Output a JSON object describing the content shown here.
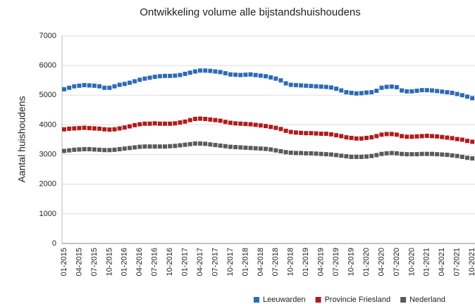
{
  "chart_data": {
    "type": "line",
    "title": "Ontwikkeling volume alle bijstandshuishoudens",
    "y_label": "Aantal huishoudens",
    "categories": [
      "01-2015",
      null,
      null,
      "04-2015",
      null,
      null,
      "07-2015",
      null,
      null,
      "10-2015",
      null,
      null,
      "01-2016",
      null,
      null,
      "04-2016",
      null,
      null,
      "07-2016",
      null,
      null,
      "10-2016",
      null,
      null,
      "01-2017",
      null,
      null,
      "04-2017",
      null,
      null,
      "07-2017",
      null,
      null,
      "10-2017",
      null,
      null,
      "01-2018",
      null,
      null,
      "04-2018",
      null,
      null,
      "07-2018",
      null,
      null,
      "10-2018",
      null,
      null,
      "01-2019",
      null,
      null,
      "04-2019",
      null,
      null,
      "07-2019",
      null,
      null,
      "10-2019",
      null,
      null,
      "01-2020",
      null,
      null,
      "04-2020",
      null,
      null,
      "07-2020",
      null,
      null,
      "10-2020",
      null,
      null,
      "01-2021",
      null,
      null,
      "04-2021",
      null,
      null,
      "07-2021",
      null,
      null,
      "10-2021"
    ],
    "series": [
      {
        "name": "Leeuwarden",
        "color": "#2e6ab4",
        "values": [
          5200,
          5250,
          5300,
          5320,
          5340,
          5330,
          5320,
          5300,
          5250,
          5250,
          5300,
          5350,
          5380,
          5420,
          5470,
          5520,
          5560,
          5590,
          5620,
          5640,
          5650,
          5650,
          5660,
          5680,
          5720,
          5760,
          5800,
          5830,
          5830,
          5820,
          5800,
          5780,
          5740,
          5700,
          5690,
          5680,
          5690,
          5700,
          5680,
          5660,
          5640,
          5600,
          5560,
          5500,
          5400,
          5350,
          5340,
          5330,
          5320,
          5310,
          5300,
          5290,
          5280,
          5260,
          5220,
          5160,
          5100,
          5080,
          5060,
          5070,
          5090,
          5100,
          5150,
          5250,
          5280,
          5290,
          5270,
          5160,
          5130,
          5130,
          5150,
          5170,
          5170,
          5160,
          5140,
          5120,
          5100,
          5080,
          5040,
          5000,
          4950,
          4900
        ]
      },
      {
        "name": "Provincie Friesland",
        "color": "#b01c1c",
        "values": [
          3850,
          3870,
          3880,
          3890,
          3900,
          3890,
          3880,
          3870,
          3850,
          3840,
          3850,
          3880,
          3910,
          3950,
          3990,
          4020,
          4040,
          4040,
          4050,
          4040,
          4040,
          4040,
          4050,
          4080,
          4110,
          4160,
          4200,
          4210,
          4200,
          4180,
          4160,
          4140,
          4100,
          4070,
          4050,
          4040,
          4030,
          4020,
          4000,
          3980,
          3960,
          3930,
          3900,
          3860,
          3800,
          3760,
          3740,
          3730,
          3720,
          3720,
          3710,
          3700,
          3700,
          3680,
          3650,
          3620,
          3580,
          3560,
          3540,
          3540,
          3560,
          3580,
          3620,
          3670,
          3690,
          3690,
          3670,
          3620,
          3600,
          3600,
          3610,
          3620,
          3630,
          3620,
          3610,
          3590,
          3570,
          3550,
          3520,
          3500,
          3460,
          3430
        ]
      },
      {
        "name": "Nederland",
        "color": "#5a5a5a",
        "values": [
          3120,
          3140,
          3160,
          3170,
          3180,
          3180,
          3170,
          3160,
          3150,
          3150,
          3160,
          3180,
          3200,
          3220,
          3240,
          3260,
          3270,
          3270,
          3270,
          3270,
          3270,
          3280,
          3290,
          3310,
          3330,
          3350,
          3370,
          3370,
          3360,
          3340,
          3320,
          3300,
          3280,
          3260,
          3250,
          3240,
          3230,
          3220,
          3210,
          3200,
          3190,
          3170,
          3140,
          3110,
          3080,
          3060,
          3050,
          3050,
          3040,
          3040,
          3030,
          3020,
          3010,
          3000,
          2980,
          2960,
          2940,
          2920,
          2920,
          2920,
          2930,
          2950,
          2980,
          3020,
          3040,
          3050,
          3040,
          3020,
          3010,
          3010,
          3010,
          3020,
          3020,
          3020,
          3010,
          3000,
          2990,
          2970,
          2950,
          2920,
          2890,
          2870
        ]
      }
    ],
    "ylim": [
      0,
      7000
    ],
    "yticks": [
      0,
      1000,
      2000,
      3000,
      4000,
      5000,
      6000,
      7000
    ],
    "grid": true,
    "legend": "bottom-right"
  }
}
